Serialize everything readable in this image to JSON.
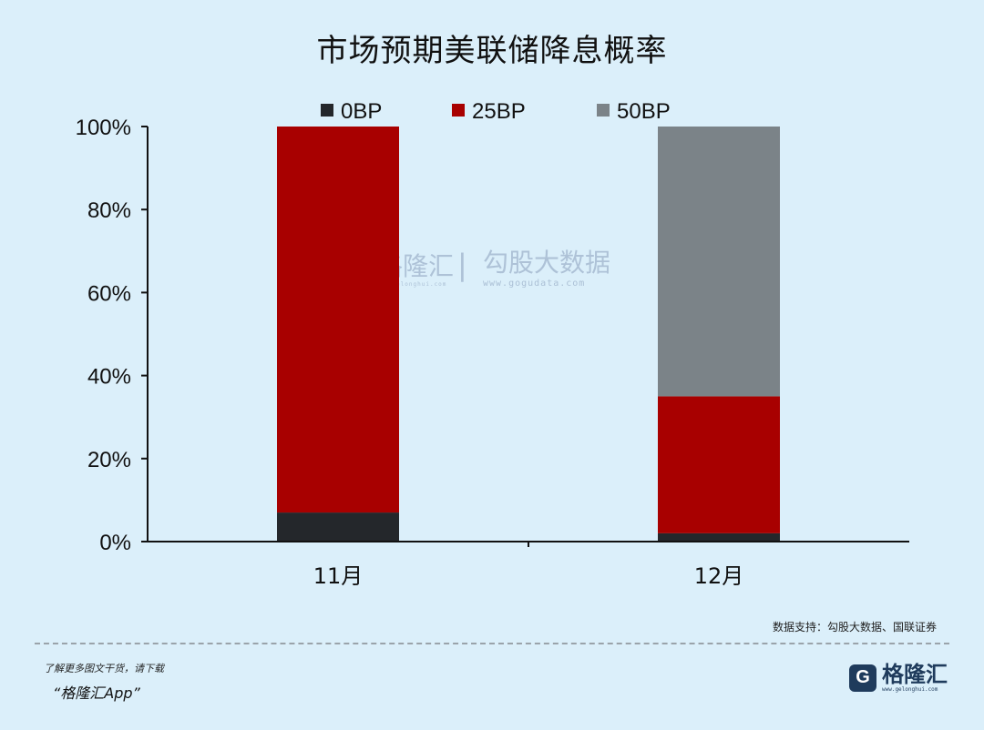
{
  "chart_data": {
    "type": "bar",
    "stacked": true,
    "title": "市场预期美联储降息概率",
    "categories": [
      "11月",
      "12月"
    ],
    "series": [
      {
        "name": "0BP",
        "values": [
          7,
          2
        ],
        "color": "#24272b"
      },
      {
        "name": "25BP",
        "values": [
          93,
          33
        ],
        "color": "#a80000"
      },
      {
        "name": "50BP",
        "values": [
          0,
          65
        ],
        "color": "#7b8388"
      }
    ],
    "ylim": [
      0,
      100
    ],
    "yticks": [
      "0%",
      "20%",
      "40%",
      "60%",
      "80%",
      "100%"
    ],
    "ytick_values": [
      0,
      20,
      40,
      60,
      80,
      100
    ],
    "xlabel": "",
    "ylabel": "",
    "legend_position": "top",
    "grid": false
  },
  "watermark": {
    "brand": "格隆汇",
    "divider": "|",
    "product": "勾股大数据",
    "brand_url": "www.gelonghui.com",
    "product_url": "www.gogudata.com"
  },
  "source_note": "数据支持：勾股大数据、国联证券",
  "footer": {
    "line1": "了解更多图文干货，请下载",
    "line2": "“格隆汇App”",
    "logo_mark": "G",
    "logo_name": "格隆汇",
    "logo_url": "www.gelonghui.com"
  }
}
